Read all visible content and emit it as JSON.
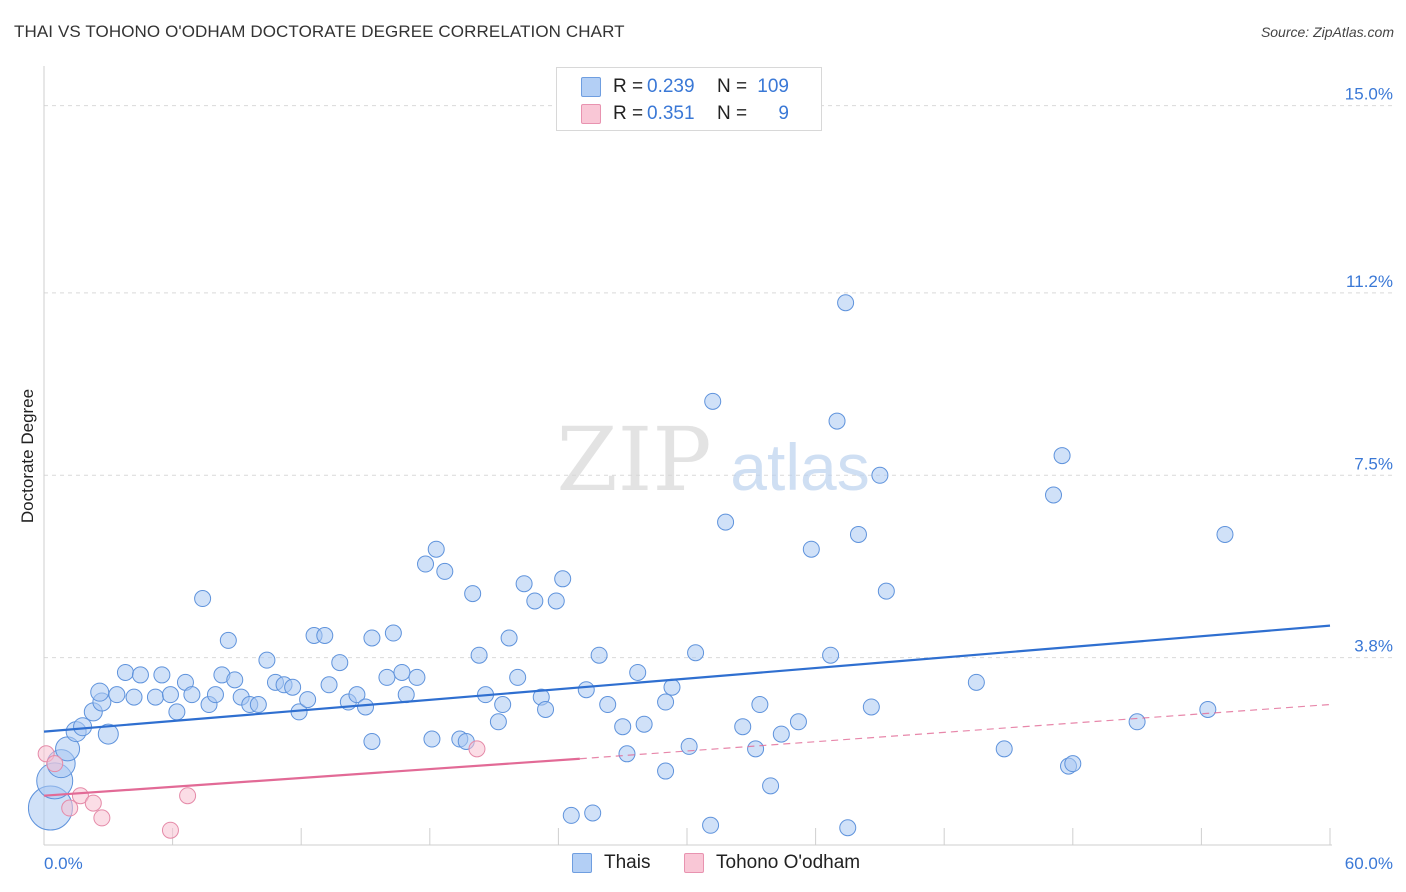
{
  "title": "THAI VS TOHONO O'ODHAM DOCTORATE DEGREE CORRELATION CHART",
  "source_prefix": "Source: ",
  "source_site": "ZipAtlas.com",
  "watermark_zip": "ZIP",
  "watermark_atlas": "atlas",
  "legend": {
    "rows": [
      {
        "r_label": "R =",
        "r_value": "0.239",
        "n_label": "N =",
        "n_value": "109",
        "color": "#b3cff5",
        "border": "#6f9ee0"
      },
      {
        "r_label": "R =",
        "r_value": "0.351",
        "n_label": "N =",
        "n_value": "9",
        "color": "#f9c7d6",
        "border": "#e893b0"
      }
    ]
  },
  "chart_data": {
    "type": "scatter",
    "title": "THAI VS TOHONO O'ODHAM DOCTORATE DEGREE CORRELATION CHART",
    "xlabel": "",
    "ylabel": "Doctorate Degree",
    "xlim": [
      0,
      60
    ],
    "ylim": [
      0,
      15.6
    ],
    "x_tick_labels": [
      {
        "value": 0,
        "label": "0.0%"
      },
      {
        "value": 60,
        "label": "60.0%"
      }
    ],
    "y_tick_labels": [
      {
        "value": 3.8,
        "label": "3.8%"
      },
      {
        "value": 7.5,
        "label": "7.5%"
      },
      {
        "value": 11.2,
        "label": "11.2%"
      },
      {
        "value": 15.0,
        "label": "15.0%"
      }
    ],
    "grid": true,
    "legend_position": "bottom-center",
    "series": [
      {
        "name": "Thais",
        "color": "#a9c8f2",
        "stroke": "#5f93dc",
        "line_color": "#2f6fd0",
        "trend": {
          "x": [
            0,
            60
          ],
          "y": [
            2.3,
            4.45
          ]
        },
        "points": [
          [
            0.3,
            0.75,
            22
          ],
          [
            0.5,
            1.3,
            18
          ],
          [
            0.8,
            1.65,
            14
          ],
          [
            1.1,
            1.95,
            12
          ],
          [
            1.5,
            2.3,
            10
          ],
          [
            1.8,
            2.4,
            9
          ],
          [
            2.3,
            2.7,
            9
          ],
          [
            2.7,
            2.9,
            9
          ],
          [
            3.0,
            2.25,
            10
          ],
          [
            2.6,
            3.1,
            9
          ],
          [
            3.4,
            3.05,
            8
          ],
          [
            3.8,
            3.5,
            8
          ],
          [
            4.5,
            3.45,
            8
          ],
          [
            4.2,
            3.0,
            8
          ],
          [
            5.2,
            3.0,
            8
          ],
          [
            5.5,
            3.45,
            8
          ],
          [
            5.9,
            3.05,
            8
          ],
          [
            6.2,
            2.7,
            8
          ],
          [
            6.6,
            3.3,
            8
          ],
          [
            6.9,
            3.05,
            8
          ],
          [
            7.4,
            5.0,
            8
          ],
          [
            7.7,
            2.85,
            8
          ],
          [
            8.0,
            3.05,
            8
          ],
          [
            8.3,
            3.45,
            8
          ],
          [
            8.6,
            4.15,
            8
          ],
          [
            8.9,
            3.35,
            8
          ],
          [
            9.2,
            3.0,
            8
          ],
          [
            9.6,
            2.85,
            8
          ],
          [
            10.0,
            2.85,
            8
          ],
          [
            10.4,
            3.75,
            8
          ],
          [
            10.8,
            3.3,
            8
          ],
          [
            11.2,
            3.25,
            8
          ],
          [
            11.6,
            3.2,
            8
          ],
          [
            11.9,
            2.7,
            8
          ],
          [
            12.3,
            2.95,
            8
          ],
          [
            12.6,
            4.25,
            8
          ],
          [
            13.1,
            4.25,
            8
          ],
          [
            13.3,
            3.25,
            8
          ],
          [
            13.8,
            3.7,
            8
          ],
          [
            14.2,
            2.9,
            8
          ],
          [
            14.6,
            3.05,
            8
          ],
          [
            15.0,
            2.8,
            8
          ],
          [
            15.3,
            4.2,
            8
          ],
          [
            15.3,
            2.1,
            8
          ],
          [
            16.0,
            3.4,
            8
          ],
          [
            16.3,
            4.3,
            8
          ],
          [
            16.7,
            3.5,
            8
          ],
          [
            16.9,
            3.05,
            8
          ],
          [
            17.4,
            3.4,
            8
          ],
          [
            17.8,
            5.7,
            8
          ],
          [
            18.1,
            2.15,
            8
          ],
          [
            18.3,
            6.0,
            8
          ],
          [
            18.7,
            5.55,
            8
          ],
          [
            19.4,
            2.15,
            8
          ],
          [
            19.7,
            2.1,
            8
          ],
          [
            20.0,
            5.1,
            8
          ],
          [
            20.3,
            3.85,
            8
          ],
          [
            20.6,
            3.05,
            8
          ],
          [
            21.2,
            2.5,
            8
          ],
          [
            21.4,
            2.85,
            8
          ],
          [
            21.7,
            4.2,
            8
          ],
          [
            22.1,
            3.4,
            8
          ],
          [
            22.4,
            5.3,
            8
          ],
          [
            22.9,
            4.95,
            8
          ],
          [
            23.2,
            3.0,
            8
          ],
          [
            23.4,
            2.75,
            8
          ],
          [
            23.9,
            4.95,
            8
          ],
          [
            24.2,
            5.4,
            8
          ],
          [
            24.6,
            0.6,
            8
          ],
          [
            25.3,
            3.15,
            8
          ],
          [
            25.6,
            0.65,
            8
          ],
          [
            25.9,
            3.85,
            8
          ],
          [
            26.3,
            2.85,
            8
          ],
          [
            27.0,
            2.4,
            8
          ],
          [
            27.2,
            1.85,
            8
          ],
          [
            27.7,
            3.5,
            8
          ],
          [
            28.0,
            2.45,
            8
          ],
          [
            29.0,
            1.5,
            8
          ],
          [
            29.0,
            2.9,
            8
          ],
          [
            29.3,
            3.2,
            8
          ],
          [
            30.1,
            2.0,
            8
          ],
          [
            30.4,
            3.9,
            8
          ],
          [
            31.1,
            0.4,
            8
          ],
          [
            31.2,
            9.0,
            8
          ],
          [
            31.8,
            6.55,
            8
          ],
          [
            32.6,
            2.4,
            8
          ],
          [
            33.2,
            1.95,
            8
          ],
          [
            33.4,
            2.85,
            8
          ],
          [
            33.9,
            1.2,
            8
          ],
          [
            34.4,
            2.25,
            8
          ],
          [
            35.2,
            2.5,
            8
          ],
          [
            35.8,
            6.0,
            8
          ],
          [
            36.7,
            3.85,
            8
          ],
          [
            37.0,
            8.6,
            8
          ],
          [
            37.4,
            11.0,
            8
          ],
          [
            37.5,
            0.35,
            8
          ],
          [
            38.0,
            6.3,
            8
          ],
          [
            38.6,
            2.8,
            8
          ],
          [
            39.0,
            7.5,
            8
          ],
          [
            39.3,
            5.15,
            8
          ],
          [
            43.5,
            3.3,
            8
          ],
          [
            44.8,
            1.95,
            8
          ],
          [
            47.1,
            7.1,
            8
          ],
          [
            47.5,
            7.9,
            8
          ],
          [
            47.8,
            1.6,
            8
          ],
          [
            48.0,
            1.65,
            8
          ],
          [
            51.0,
            2.5,
            8
          ],
          [
            54.3,
            2.75,
            8
          ],
          [
            55.1,
            6.3,
            8
          ]
        ]
      },
      {
        "name": "Tohono O'odham",
        "color": "#f7c1d2",
        "stroke": "#e58aa8",
        "line_color": "#e26a96",
        "trend": {
          "x": [
            0,
            25
          ],
          "y": [
            1.0,
            1.75
          ]
        },
        "trend_dashed": {
          "x": [
            25,
            60
          ],
          "y": [
            1.75,
            2.85
          ]
        },
        "points": [
          [
            0.1,
            1.85,
            8
          ],
          [
            0.5,
            1.65,
            8
          ],
          [
            1.2,
            0.75,
            8
          ],
          [
            1.7,
            1.0,
            8
          ],
          [
            2.3,
            0.85,
            8
          ],
          [
            2.7,
            0.55,
            8
          ],
          [
            5.9,
            0.3,
            8
          ],
          [
            6.7,
            1.0,
            8
          ],
          [
            20.2,
            1.95,
            8
          ]
        ]
      }
    ]
  }
}
